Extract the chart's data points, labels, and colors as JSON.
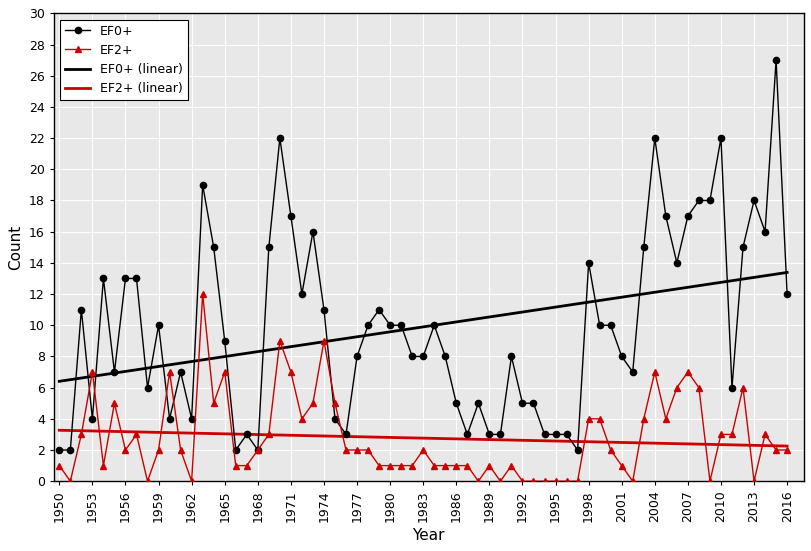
{
  "years": [
    1950,
    1951,
    1952,
    1953,
    1954,
    1955,
    1956,
    1957,
    1958,
    1959,
    1960,
    1961,
    1962,
    1963,
    1964,
    1965,
    1966,
    1967,
    1968,
    1969,
    1970,
    1971,
    1972,
    1973,
    1974,
    1975,
    1976,
    1977,
    1978,
    1979,
    1980,
    1981,
    1982,
    1983,
    1984,
    1985,
    1986,
    1987,
    1988,
    1989,
    1990,
    1991,
    1992,
    1993,
    1994,
    1995,
    1996,
    1997,
    1998,
    1999,
    2000,
    2001,
    2002,
    2003,
    2004,
    2005,
    2006,
    2007,
    2008,
    2009,
    2010,
    2011,
    2012,
    2013,
    2014,
    2015,
    2016
  ],
  "ef0plus": [
    2,
    2,
    11,
    4,
    13,
    7,
    13,
    13,
    6,
    10,
    4,
    7,
    4,
    19,
    15,
    9,
    2,
    3,
    2,
    15,
    22,
    17,
    12,
    16,
    11,
    4,
    3,
    8,
    10,
    11,
    10,
    10,
    8,
    8,
    10,
    8,
    5,
    3,
    5,
    3,
    3,
    8,
    5,
    5,
    3,
    3,
    3,
    2,
    14,
    10,
    10,
    8,
    7,
    15,
    22,
    17,
    14,
    17,
    18,
    18,
    22,
    6,
    15,
    18,
    16,
    27,
    12
  ],
  "ef2plus": [
    1,
    0,
    3,
    7,
    1,
    5,
    2,
    3,
    0,
    2,
    7,
    2,
    0,
    12,
    5,
    7,
    1,
    1,
    2,
    3,
    9,
    7,
    4,
    5,
    9,
    5,
    2,
    2,
    2,
    1,
    1,
    1,
    1,
    2,
    1,
    1,
    1,
    1,
    0,
    1,
    0,
    1,
    0,
    0,
    0,
    0,
    0,
    0,
    4,
    4,
    2,
    1,
    0,
    4,
    7,
    4,
    6,
    7,
    6,
    0,
    3,
    3,
    6,
    0,
    3,
    2,
    2
  ],
  "ef0plus_color": "#000000",
  "ef2plus_color": "#cc0000",
  "xlabel": "Year",
  "ylabel": "Count",
  "ylim": [
    0,
    30
  ],
  "yticks": [
    0,
    2,
    4,
    6,
    8,
    10,
    12,
    14,
    16,
    18,
    20,
    22,
    24,
    26,
    28,
    30
  ],
  "xlim": [
    1949.5,
    2017.5
  ],
  "xtick_years": [
    1950,
    1953,
    1956,
    1959,
    1962,
    1965,
    1968,
    1971,
    1974,
    1977,
    1980,
    1983,
    1986,
    1989,
    1992,
    1995,
    1998,
    2001,
    2004,
    2007,
    2010,
    2013,
    2016
  ],
  "background_color": "#e8e8e8",
  "grid_color": "#ffffff",
  "trend_x_start": 1950,
  "trend_x_end": 2016
}
